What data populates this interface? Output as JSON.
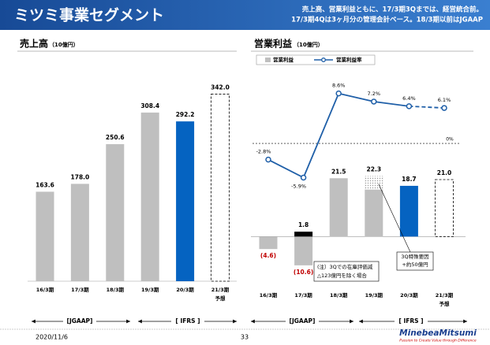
{
  "header": {
    "title": "ミツミ事業セグメント",
    "notes": [
      "売上高、営業利益ともに、17/3期3Qまでは、経営統合前。",
      "17/3期4Qは3ヶ月分の管理会計ベース。18/3期以前はJGAAP"
    ]
  },
  "chart_data": [
    {
      "type": "bar",
      "title": "売上高",
      "unit": "（10億円）",
      "categories": [
        "16/3期",
        "17/3期",
        "18/3期",
        "19/3期",
        "20/3期",
        "21/3期"
      ],
      "category_notes": [
        null,
        null,
        null,
        null,
        null,
        "予想"
      ],
      "values": [
        163.6,
        178.0,
        250.6,
        308.4,
        292.2,
        342.0
      ],
      "value_labels": [
        "163.6",
        "178.0",
        "250.6",
        "308.4",
        "292.2",
        "342.0"
      ],
      "bar_colors": [
        "#bfbfbf",
        "#bfbfbf",
        "#bfbfbf",
        "#bfbfbf",
        "#0563c1",
        "#ffffff"
      ],
      "forecast_index": 5,
      "ylim": [
        0,
        350
      ]
    },
    {
      "type": "bar_line",
      "title": "営業利益",
      "unit": "（10億円）",
      "categories": [
        "16/3期",
        "17/3期",
        "18/3期",
        "19/3期",
        "20/3期",
        "21/3期"
      ],
      "category_notes": [
        null,
        null,
        null,
        null,
        null,
        "予想"
      ],
      "forecast_index": 5,
      "series": [
        {
          "name": "営業利益",
          "color": "#bfbfbf",
          "values": [
            -4.6,
            -10.6,
            21.5,
            22.3,
            18.7,
            21.0
          ],
          "value_labels": [
            "(4.6)",
            "(10.6)",
            "21.5",
            "22.3",
            "18.7",
            "21.0"
          ],
          "bar_colors": [
            "#bfbfbf",
            "#bfbfbf",
            "#bfbfbf",
            "#bfbfbf",
            "#0563c1",
            "#ffffff"
          ]
        },
        {
          "name": "営業利益率",
          "color": "#1f5fa8",
          "axis": "y2",
          "values": [
            -2.8,
            -5.9,
            8.6,
            7.2,
            6.4,
            6.1
          ],
          "value_labels": [
            "-2.8%",
            "-5.9%",
            "8.6%",
            "7.2%",
            "6.4%",
            "6.1%"
          ]
        }
      ],
      "adjusted": {
        "index": 1,
        "value": 1.8,
        "color": "#000000",
        "note": [
          "(注）3Qでの在庫評価減",
          "△123億円を除く場合"
        ]
      },
      "special": {
        "index": 3,
        "value": 5.0,
        "note": [
          "3Q特殊要因",
          "+約50億円"
        ]
      },
      "zero_label": "0%",
      "ylim": [
        -15,
        30
      ],
      "y2lim": [
        -10,
        12
      ]
    }
  ],
  "accounting": [
    "[JGAAP]",
    "[ IFRS ]"
  ],
  "footer": {
    "date": "2020/11/6",
    "page": "33",
    "logo": "MinebeaMitsumi",
    "tagline": "Passion to Create Value through Difference"
  }
}
